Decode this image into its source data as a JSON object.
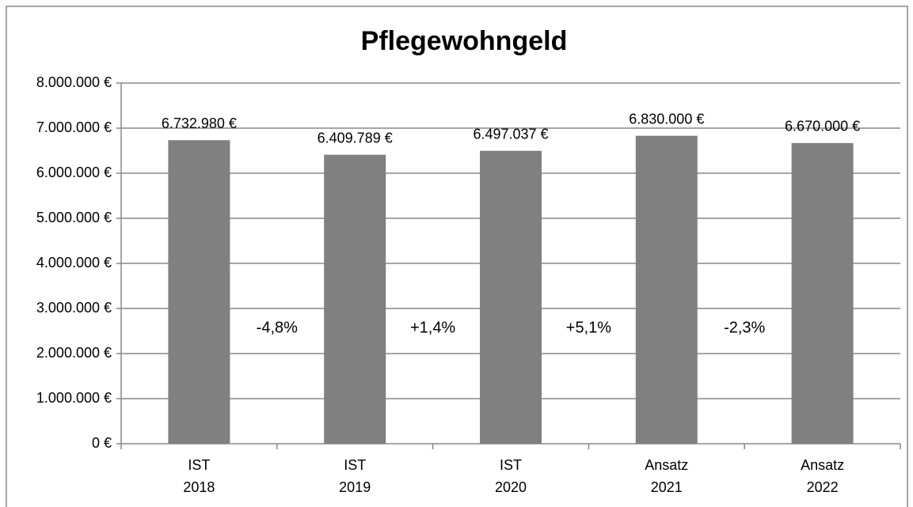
{
  "chart_data": {
    "type": "bar",
    "title": "Pflegewohngeld",
    "categories": [
      [
        "IST",
        "2018"
      ],
      [
        "IST",
        "2019"
      ],
      [
        "IST",
        "2020"
      ],
      [
        "Ansatz",
        "2021"
      ],
      [
        "Ansatz",
        "2022"
      ]
    ],
    "values": [
      6732980,
      6409789,
      6497037,
      6830000,
      6670000
    ],
    "value_labels": [
      "6.732.980 €",
      "6.409.789 €",
      "6.497.037 €",
      "6.830.000 €",
      "6.670.000 €"
    ],
    "annotations": [
      "-4,8%",
      "+1,4%",
      "+5,1%",
      "-2,3%"
    ],
    "color": "#808080",
    "ylim": [
      0,
      8000000
    ],
    "yticks": [
      {
        "value": 0,
        "label": "0 €"
      },
      {
        "value": 1000000,
        "label": "1.000.000 €"
      },
      {
        "value": 2000000,
        "label": "2.000.000 €"
      },
      {
        "value": 3000000,
        "label": "3.000.000 €"
      },
      {
        "value": 4000000,
        "label": "4.000.000 €"
      },
      {
        "value": 5000000,
        "label": "5.000.000 €"
      },
      {
        "value": 6000000,
        "label": "6.000.000 €"
      },
      {
        "value": 7000000,
        "label": "7.000.000 €"
      },
      {
        "value": 8000000,
        "label": "8.000.000 €"
      }
    ],
    "grid": true
  }
}
